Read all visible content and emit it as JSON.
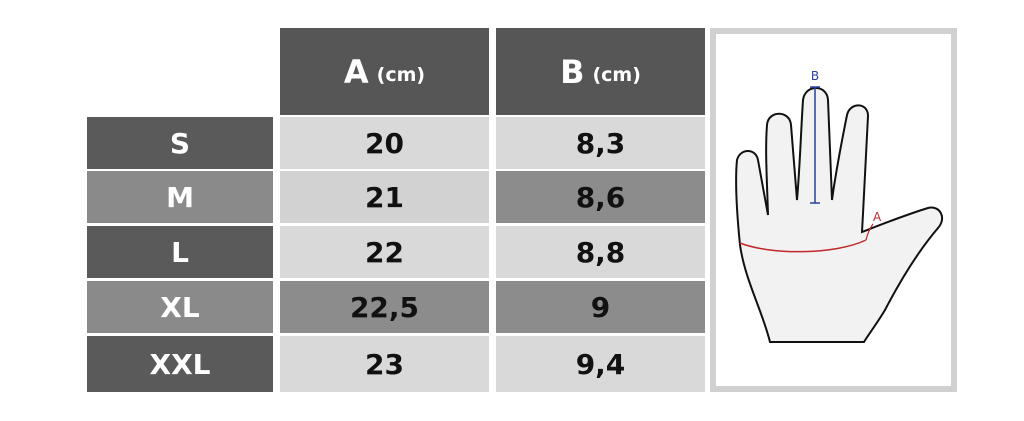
{
  "table": {
    "header": [
      {
        "letter": "A",
        "unit": "(cm)"
      },
      {
        "letter": "B",
        "unit": "(cm)"
      }
    ],
    "rows": [
      [
        "S",
        "20",
        "8,3"
      ],
      [
        "M",
        "21",
        "8,6"
      ],
      [
        "L",
        "22",
        "8,8"
      ],
      [
        "XL",
        "22,5",
        "9"
      ],
      [
        "XXL",
        "23",
        "9,4"
      ]
    ]
  },
  "diagram": {
    "label_b": "B",
    "label_a": "A"
  }
}
